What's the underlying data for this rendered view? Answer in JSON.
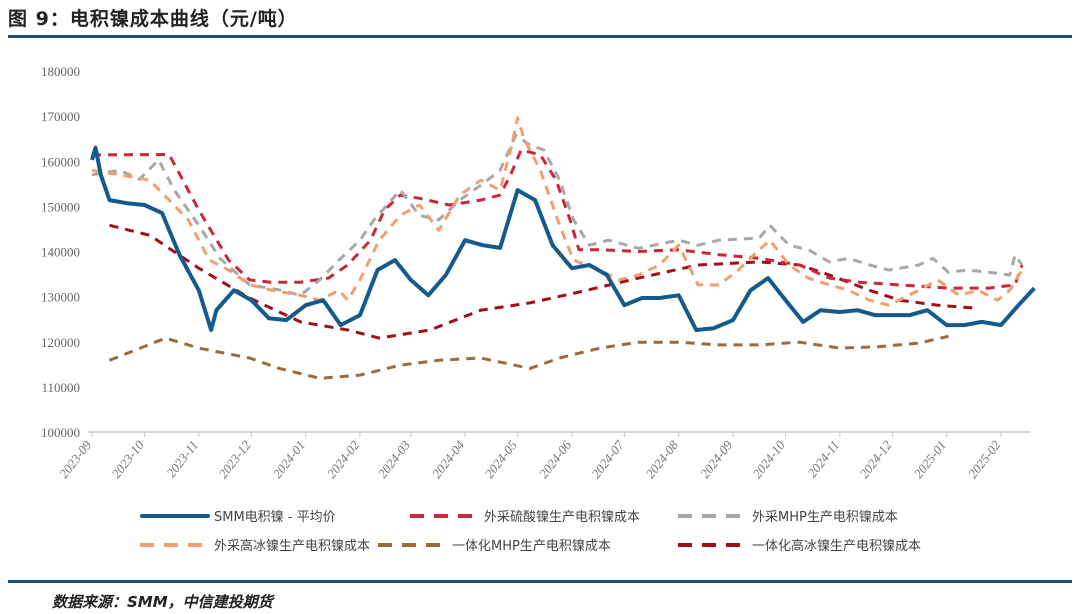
{
  "header": {
    "title": "图 9：电积镍成本曲线（元/吨）"
  },
  "footer": {
    "source": "数据来源：SMM，中信建投期货"
  },
  "chart_data": {
    "type": "line",
    "title": "图 9：电积镍成本曲线（元/吨）",
    "xlabel": "",
    "ylabel": "",
    "ylim": [
      100000,
      180000
    ],
    "yticks": [
      "100000",
      "110000",
      "120000",
      "130000",
      "140000",
      "150000",
      "160000",
      "170000",
      "180000"
    ],
    "xticks": [
      "2023-09",
      "2023-10",
      "2023-11",
      "2023-12",
      "2024-01",
      "2024-02",
      "2024-03",
      "2024-04",
      "2024-05",
      "2024-06",
      "2024-07",
      "2024-08",
      "2024-09",
      "2024-10",
      "2024-11",
      "2024-12",
      "2025-01",
      "2025-02"
    ],
    "grid": false,
    "legend_position": "bottom",
    "series": [
      {
        "name": "SMM电积镍 - 平均价",
        "color": "#145a8c",
        "style": "solid",
        "points": [
          [
            "2023-09-01",
            160300
          ],
          [
            "2023-09-03",
            163000
          ],
          [
            "2023-09-06",
            157000
          ],
          [
            "2023-09-11",
            151400
          ],
          [
            "2023-09-21",
            150700
          ],
          [
            "2023-10-01",
            150300
          ],
          [
            "2023-10-11",
            148500
          ],
          [
            "2023-10-21",
            139200
          ],
          [
            "2023-11-01",
            131400
          ],
          [
            "2023-11-08",
            122600
          ],
          [
            "2023-11-11",
            127000
          ],
          [
            "2023-11-21",
            131400
          ],
          [
            "2023-12-01",
            129200
          ],
          [
            "2023-12-11",
            125200
          ],
          [
            "2023-12-21",
            124800
          ],
          [
            "2024-01-01",
            128100
          ],
          [
            "2024-01-11",
            129200
          ],
          [
            "2024-01-21",
            123700
          ],
          [
            "2024-02-01",
            125900
          ],
          [
            "2024-02-11",
            135900
          ],
          [
            "2024-02-21",
            138100
          ],
          [
            "2024-03-01",
            133700
          ],
          [
            "2024-03-11",
            130300
          ],
          [
            "2024-03-21",
            134800
          ],
          [
            "2024-04-01",
            142500
          ],
          [
            "2024-04-11",
            141400
          ],
          [
            "2024-04-21",
            140800
          ],
          [
            "2024-05-01",
            153600
          ],
          [
            "2024-05-11",
            151400
          ],
          [
            "2024-05-21",
            141400
          ],
          [
            "2024-06-01",
            136300
          ],
          [
            "2024-06-11",
            137000
          ],
          [
            "2024-06-21",
            134800
          ],
          [
            "2024-07-01",
            128100
          ],
          [
            "2024-07-11",
            129700
          ],
          [
            "2024-07-21",
            129700
          ],
          [
            "2024-08-01",
            130300
          ],
          [
            "2024-08-11",
            122600
          ],
          [
            "2024-08-21",
            123000
          ],
          [
            "2024-09-01",
            124800
          ],
          [
            "2024-09-11",
            131400
          ],
          [
            "2024-09-21",
            134100
          ],
          [
            "2024-10-01",
            129200
          ],
          [
            "2024-10-11",
            124400
          ],
          [
            "2024-10-21",
            127000
          ],
          [
            "2024-11-01",
            126600
          ],
          [
            "2024-11-11",
            127000
          ],
          [
            "2024-11-21",
            125900
          ],
          [
            "2024-12-01",
            125900
          ],
          [
            "2024-12-11",
            125900
          ],
          [
            "2024-12-21",
            127000
          ],
          [
            "2025-01-01",
            123700
          ],
          [
            "2025-01-11",
            123700
          ],
          [
            "2025-01-21",
            124400
          ],
          [
            "2025-02-01",
            123700
          ],
          [
            "2025-02-11",
            128100
          ],
          [
            "2025-02-20",
            131900
          ]
        ]
      },
      {
        "name": "外采硫酸镍生产电积镍成本",
        "color": "#c8283a",
        "style": "dashed",
        "points": [
          [
            "2023-09-01",
            161400
          ],
          [
            "2023-10-15",
            161500
          ],
          [
            "2023-11-01",
            149200
          ],
          [
            "2023-11-18",
            138100
          ],
          [
            "2023-11-30",
            133700
          ],
          [
            "2023-12-12",
            133200
          ],
          [
            "2023-12-29",
            133200
          ],
          [
            "2024-01-14",
            134100
          ],
          [
            "2024-01-25",
            137000
          ],
          [
            "2024-02-07",
            142500
          ],
          [
            "2024-02-15",
            149200
          ],
          [
            "2024-02-24",
            152500
          ],
          [
            "2024-03-06",
            151800
          ],
          [
            "2024-03-23",
            150300
          ],
          [
            "2024-04-10",
            151400
          ],
          [
            "2024-04-21",
            152500
          ],
          [
            "2024-04-27",
            157000
          ],
          [
            "2024-05-03",
            162500
          ],
          [
            "2024-05-14",
            161400
          ],
          [
            "2024-05-23",
            155800
          ],
          [
            "2024-05-31",
            147000
          ],
          [
            "2024-06-05",
            140400
          ],
          [
            "2024-06-17",
            140400
          ],
          [
            "2024-07-09",
            140000
          ],
          [
            "2024-08-01",
            140400
          ],
          [
            "2024-08-24",
            139300
          ],
          [
            "2024-09-16",
            138500
          ],
          [
            "2024-10-09",
            137000
          ],
          [
            "2024-10-26",
            134100
          ],
          [
            "2024-11-12",
            133200
          ],
          [
            "2024-12-05",
            132600
          ],
          [
            "2025-01-02",
            131900
          ],
          [
            "2025-01-25",
            131900
          ],
          [
            "2025-02-09",
            132600
          ],
          [
            "2025-02-13",
            137000
          ]
        ]
      },
      {
        "name": "外采MHP生产电积镍成本",
        "color": "#a8a8a8",
        "style": "dashed",
        "points": [
          [
            "2023-09-01",
            157000
          ],
          [
            "2023-09-17",
            158000
          ],
          [
            "2023-09-28",
            156000
          ],
          [
            "2023-10-09",
            160300
          ],
          [
            "2023-10-18",
            153600
          ],
          [
            "2023-11-01",
            145800
          ],
          [
            "2023-11-13",
            138500
          ],
          [
            "2023-11-30",
            132600
          ],
          [
            "2023-12-17",
            131500
          ],
          [
            "2023-12-29",
            130300
          ],
          [
            "2024-01-09",
            133700
          ],
          [
            "2024-01-20",
            138100
          ],
          [
            "2024-02-01",
            142500
          ],
          [
            "2024-02-09",
            147000
          ],
          [
            "2024-02-24",
            153600
          ],
          [
            "2024-03-06",
            148000
          ],
          [
            "2024-03-17",
            147000
          ],
          [
            "2024-03-29",
            151400
          ],
          [
            "2024-04-10",
            154700
          ],
          [
            "2024-04-21",
            158000
          ],
          [
            "2024-04-30",
            165800
          ],
          [
            "2024-05-08",
            163600
          ],
          [
            "2024-05-16",
            162500
          ],
          [
            "2024-05-25",
            155800
          ],
          [
            "2024-06-02",
            147000
          ],
          [
            "2024-06-11",
            141400
          ],
          [
            "2024-06-22",
            142500
          ],
          [
            "2024-07-09",
            140700
          ],
          [
            "2024-08-01",
            142500
          ],
          [
            "2024-08-12",
            141400
          ],
          [
            "2024-08-24",
            142500
          ],
          [
            "2024-09-16",
            143000
          ],
          [
            "2024-09-22",
            145800
          ],
          [
            "2024-10-03",
            141400
          ],
          [
            "2024-10-14",
            140400
          ],
          [
            "2024-10-26",
            137700
          ],
          [
            "2024-11-06",
            138500
          ],
          [
            "2024-11-18",
            137000
          ],
          [
            "2024-11-29",
            135900
          ],
          [
            "2024-12-16",
            137000
          ],
          [
            "2024-12-24",
            138500
          ],
          [
            "2025-01-02",
            135400
          ],
          [
            "2025-01-13",
            135900
          ],
          [
            "2025-01-25",
            135400
          ],
          [
            "2025-02-06",
            134800
          ],
          [
            "2025-02-09",
            139200
          ],
          [
            "2025-02-13",
            137000
          ]
        ]
      },
      {
        "name": "外采高冰镍生产电积镍成本",
        "color": "#f0a070",
        "style": "dashed",
        "points": [
          [
            "2023-09-01",
            158000
          ],
          [
            "2023-09-17",
            157000
          ],
          [
            "2023-10-04",
            155800
          ],
          [
            "2023-10-15",
            151400
          ],
          [
            "2023-10-26",
            147000
          ],
          [
            "2023-11-07",
            138100
          ],
          [
            "2023-11-18",
            135900
          ],
          [
            "2023-11-30",
            132600
          ],
          [
            "2023-12-12",
            131500
          ],
          [
            "2023-12-29",
            130300
          ],
          [
            "2024-01-09",
            129200
          ],
          [
            "2024-01-20",
            131400
          ],
          [
            "2024-01-25",
            129200
          ],
          [
            "2024-02-01",
            133700
          ],
          [
            "2024-02-12",
            142500
          ],
          [
            "2024-02-24",
            148000
          ],
          [
            "2024-03-06",
            150300
          ],
          [
            "2024-03-17",
            144700
          ],
          [
            "2024-03-29",
            152500
          ],
          [
            "2024-04-10",
            155800
          ],
          [
            "2024-04-21",
            153600
          ],
          [
            "2024-04-27",
            162500
          ],
          [
            "2024-05-01",
            169600
          ],
          [
            "2024-05-05",
            164700
          ],
          [
            "2024-05-14",
            158000
          ],
          [
            "2024-05-25",
            145800
          ],
          [
            "2024-06-02",
            138100
          ],
          [
            "2024-06-17",
            135900
          ],
          [
            "2024-06-28",
            133700
          ],
          [
            "2024-07-09",
            134800
          ],
          [
            "2024-07-21",
            137000
          ],
          [
            "2024-08-01",
            141400
          ],
          [
            "2024-08-12",
            132600
          ],
          [
            "2024-08-24",
            132600
          ],
          [
            "2024-09-04",
            135900
          ],
          [
            "2024-09-16",
            140400
          ],
          [
            "2024-09-22",
            142500
          ],
          [
            "2024-10-03",
            137000
          ],
          [
            "2024-10-14",
            134100
          ],
          [
            "2024-10-26",
            132600
          ],
          [
            "2024-11-06",
            131400
          ],
          [
            "2024-11-18",
            129200
          ],
          [
            "2024-11-29",
            128100
          ],
          [
            "2024-12-16",
            131400
          ],
          [
            "2024-12-27",
            133700
          ],
          [
            "2025-01-08",
            130300
          ],
          [
            "2025-01-19",
            131400
          ],
          [
            "2025-01-30",
            129200
          ],
          [
            "2025-02-06",
            131400
          ],
          [
            "2025-02-13",
            135900
          ]
        ]
      },
      {
        "name": "一体化MHP生产电积镍成本",
        "color": "#9c6b3c",
        "style": "dashed",
        "points": [
          [
            "2023-09-11",
            115900
          ],
          [
            "2023-10-13",
            120800
          ],
          [
            "2023-11-01",
            118600
          ],
          [
            "2023-11-30",
            116400
          ],
          [
            "2023-12-17",
            114100
          ],
          [
            "2024-01-09",
            111900
          ],
          [
            "2024-02-01",
            112600
          ],
          [
            "2024-02-24",
            114800
          ],
          [
            "2024-03-17",
            115900
          ],
          [
            "2024-04-10",
            116400
          ],
          [
            "2024-05-08",
            114100
          ],
          [
            "2024-05-25",
            116400
          ],
          [
            "2024-06-17",
            118600
          ],
          [
            "2024-07-09",
            119900
          ],
          [
            "2024-08-01",
            119900
          ],
          [
            "2024-08-24",
            119300
          ],
          [
            "2024-09-16",
            119300
          ],
          [
            "2024-10-09",
            119900
          ],
          [
            "2024-11-01",
            118600
          ],
          [
            "2024-11-23",
            118900
          ],
          [
            "2024-12-16",
            119700
          ],
          [
            "2025-01-02",
            121200
          ]
        ]
      },
      {
        "name": "一体化高冰镍生产电积镍成本",
        "color": "#a00e18",
        "style": "dashed",
        "points": [
          [
            "2023-09-11",
            145800
          ],
          [
            "2023-10-04",
            143600
          ],
          [
            "2023-11-01",
            136300
          ],
          [
            "2023-11-30",
            129700
          ],
          [
            "2023-12-29",
            124400
          ],
          [
            "2024-01-25",
            122600
          ],
          [
            "2024-02-12",
            120800
          ],
          [
            "2024-03-12",
            122600
          ],
          [
            "2024-04-10",
            127000
          ],
          [
            "2024-05-08",
            128600
          ],
          [
            "2024-06-05",
            131000
          ],
          [
            "2024-07-09",
            134100
          ],
          [
            "2024-08-12",
            137000
          ],
          [
            "2024-09-16",
            137700
          ],
          [
            "2024-10-09",
            137000
          ],
          [
            "2024-10-26",
            134800
          ],
          [
            "2024-11-18",
            131400
          ],
          [
            "2024-12-05",
            129200
          ],
          [
            "2024-12-27",
            128100
          ],
          [
            "2025-01-19",
            127400
          ]
        ]
      }
    ]
  }
}
